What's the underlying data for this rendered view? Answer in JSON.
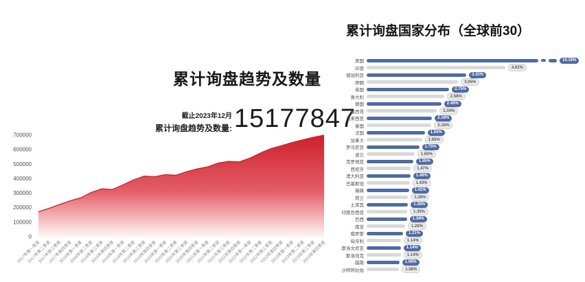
{
  "left_chart": {
    "title": "累计询盘趋势及数量",
    "as_of": "截止2023年12月",
    "total_label": "累计询盘趋势及数量:",
    "total_value": "15177847"
  },
  "right_chart": {
    "title": "累计询盘国家分布（全球前30）"
  },
  "colors": {
    "bar_blue": "#4e6ba3",
    "bar_gray": "#d9d9d9",
    "area_red_top": "#ce202c",
    "area_red_mid": "#e45d66",
    "area_red_bottom": "#fff6f6",
    "axis_text": "#4a4a4a",
    "x_label_text": "#8a8a8a"
  },
  "chart_data": [
    {
      "type": "area",
      "title": "累计询盘趋势及数量",
      "annotation": {
        "as_of": "截止2023年12月",
        "label": "累计询盘趋势及数量:",
        "value": "15177847"
      },
      "x": [
        "2017年第一季度",
        "2017年第二季度",
        "2017年第三季度",
        "2017年第四季度",
        "2018年第一季度",
        "2018年第二季度",
        "2018年第三季度",
        "2018年第四季度",
        "2019年第一季度",
        "2019年第二季度",
        "2019年第三季度",
        "2019年第四季度",
        "2020年第一季度",
        "2020年第二季度",
        "2020年第三季度",
        "2020年第四季度",
        "2021年第一季度",
        "2021年第二季度",
        "2021年第三季度",
        "2021年第四季度",
        "2022年第一季度",
        "2022年第二季度",
        "2022年第三季度",
        "2022年第四季度",
        "2023年第一季度",
        "2023年第二季度",
        "2023年第三季度",
        "2023年第四季度"
      ],
      "values": [
        172000,
        196000,
        222000,
        248000,
        268000,
        305000,
        330000,
        326000,
        358000,
        392000,
        418000,
        414000,
        428000,
        424000,
        448000,
        468000,
        482000,
        508000,
        520000,
        516000,
        542000,
        578000,
        608000,
        628000,
        650000,
        668000,
        686000,
        700000
      ],
      "xlabel": "",
      "ylabel": "",
      "ylim": [
        0,
        700000
      ],
      "yticks": [
        0,
        100000,
        200000,
        300000,
        400000,
        500000,
        600000,
        700000
      ],
      "grid": false,
      "legend": false
    },
    {
      "type": "bar",
      "orientation": "horizontal",
      "title": "累计询盘国家分布（全球前30）",
      "categories": [
        "美国",
        "印度",
        "保加利亚",
        "伊朗",
        "英国",
        "意大利",
        "德国",
        "墨西哥",
        "马来西亚",
        "泰国",
        "法国",
        "加拿大",
        "罗马尼亚",
        "波兰",
        "克罗地亚",
        "西班牙",
        "澳大利亚",
        "巴基斯坦",
        "瑞典",
        "荷兰",
        "土耳其",
        "印度尼西亚",
        "巴西",
        "南非",
        "俄罗斯",
        "匈牙利",
        "斯洛文尼亚",
        "斯洛伐克",
        "越南",
        "沙特阿拉伯"
      ],
      "values": [
        10.19,
        4.62,
        3.32,
        3.05,
        2.75,
        2.58,
        2.49,
        2.34,
        2.18,
        2.16,
        1.94,
        1.85,
        1.75,
        1.6,
        1.55,
        1.47,
        1.46,
        1.43,
        1.41,
        1.38,
        1.38,
        1.35,
        1.34,
        1.28,
        1.21,
        1.14,
        1.14,
        1.14,
        1.09,
        1.08
      ],
      "value_labels": [
        "10.19%",
        "4.62%",
        "3.32%",
        "3.05%",
        "2.75%",
        "2.58%",
        "2.49%",
        "2.34%",
        "2.18%",
        "2.16%",
        "1.94%",
        "1.85%",
        "1.75%",
        "1.60%",
        "1.55%",
        "1.47%",
        "1.46%",
        "1.43%",
        "1.41%",
        "1.38%",
        "1.38%",
        "1.35%",
        "1.34%",
        "1.28%",
        "1.21%",
        "1.14%",
        "1.14%",
        "1.14%",
        "1.09%",
        "1.08%"
      ],
      "xlim": [
        0,
        5
      ],
      "first_bar_axis_break": true,
      "legend": false,
      "grid": false
    }
  ]
}
